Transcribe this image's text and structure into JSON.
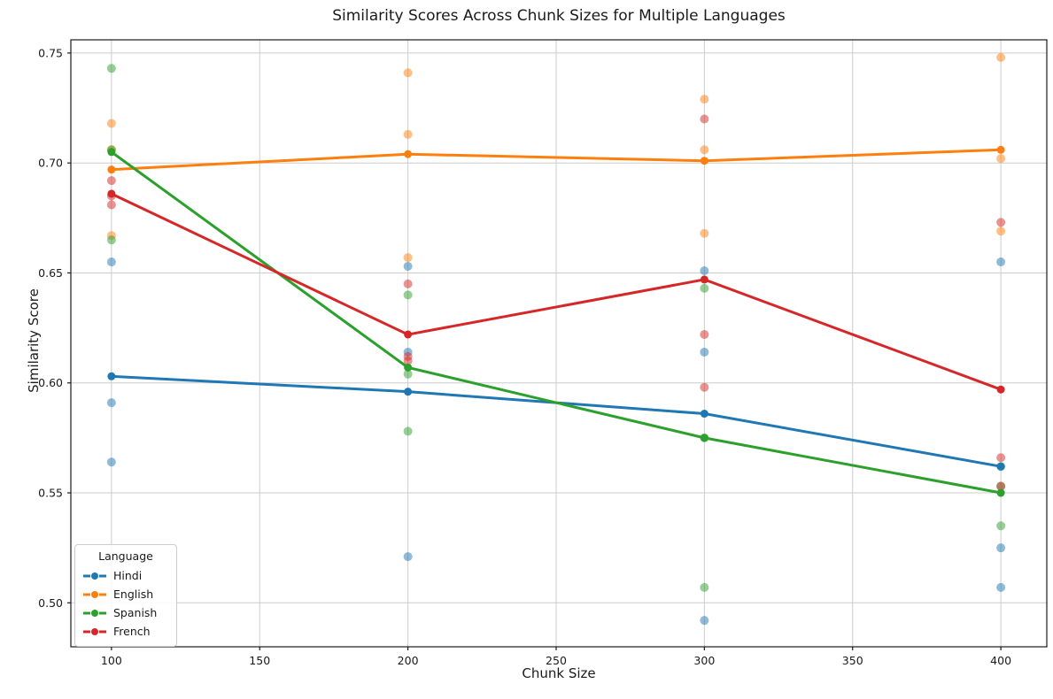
{
  "title": "Similarity Scores Across Chunk Sizes for Multiple Languages",
  "chart_data": {
    "type": "line",
    "title": "Similarity Scores Across Chunk Sizes for Multiple Languages",
    "xlabel": "Chunk Size",
    "ylabel": "Similarity Score",
    "x": [
      100,
      200,
      300,
      400
    ],
    "xticks": [
      100,
      150,
      200,
      250,
      300,
      350,
      400
    ],
    "yticks": [
      0.5,
      0.55,
      0.6,
      0.65,
      0.7,
      0.75
    ],
    "xlim": [
      86.3,
      415.5
    ],
    "ylim": [
      0.48,
      0.756
    ],
    "grid": true,
    "grid_color": "#cccccc",
    "spine_color": "#1a1a1a",
    "scatter_opacity": 0.5,
    "legend": {
      "title": "Language",
      "position": "lower-left"
    },
    "series": [
      {
        "name": "Hindi",
        "color": "#1f77b4",
        "means": [
          0.603,
          0.596,
          0.586,
          0.562
        ],
        "points": [
          [
            0.655,
            0.591,
            0.564
          ],
          [
            0.653,
            0.614,
            0.521
          ],
          [
            0.651,
            0.614,
            0.492
          ],
          [
            0.655,
            0.525,
            0.507
          ]
        ]
      },
      {
        "name": "English",
        "color": "#ff7f0e",
        "means": [
          0.697,
          0.704,
          0.701,
          0.706
        ],
        "points": [
          [
            0.718,
            0.706,
            0.667
          ],
          [
            0.741,
            0.713,
            0.657
          ],
          [
            0.729,
            0.706,
            0.668
          ],
          [
            0.748,
            0.702,
            0.669
          ]
        ]
      },
      {
        "name": "Spanish",
        "color": "#2ca02c",
        "means": [
          0.705,
          0.607,
          0.575,
          0.55
        ],
        "points": [
          [
            0.743,
            0.706,
            0.665
          ],
          [
            0.64,
            0.604,
            0.578
          ],
          [
            0.643,
            0.575,
            0.507
          ],
          [
            0.562,
            0.553,
            0.535
          ]
        ]
      },
      {
        "name": "French",
        "color": "#d62728",
        "means": [
          0.686,
          0.622,
          0.647,
          0.597
        ],
        "points": [
          [
            0.692,
            0.685,
            0.681
          ],
          [
            0.645,
            0.612,
            0.61
          ],
          [
            0.72,
            0.622,
            0.598
          ],
          [
            0.673,
            0.566,
            0.553
          ]
        ]
      }
    ]
  }
}
